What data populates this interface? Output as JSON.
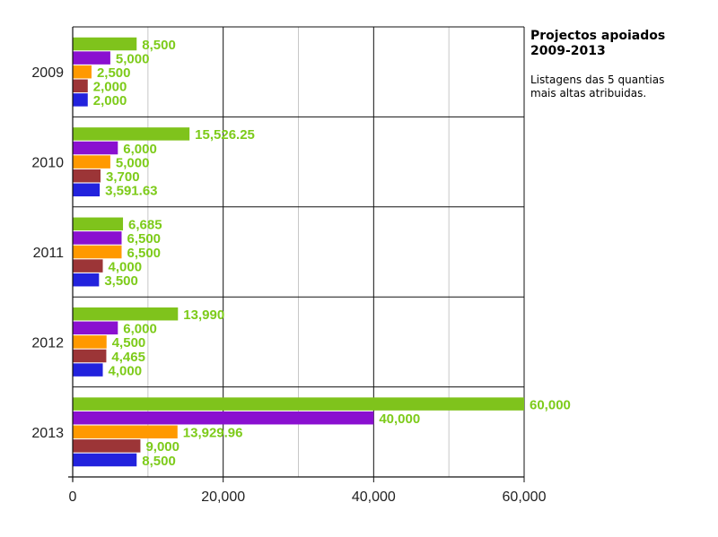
{
  "chart_data": {
    "type": "bar",
    "orientation": "horizontal",
    "title": "Projectos apoiados\n2009-2013",
    "subtitle": "Listagens das 5 quantias\nmais altas atribuidas.",
    "categories": [
      "2009",
      "2010",
      "2011",
      "2012",
      "2013"
    ],
    "series": [
      {
        "rank": 1,
        "color": "#7fc31c",
        "values": [
          8500,
          15526.25,
          6685,
          13990,
          60000
        ],
        "labels": [
          "8,500",
          "15,526.25",
          "6,685",
          "13,990",
          "60,000"
        ]
      },
      {
        "rank": 2,
        "color": "#8a10d0",
        "values": [
          5000,
          6000,
          6500,
          6000,
          40000
        ],
        "labels": [
          "5,000",
          "6,000",
          "6,500",
          "6,000",
          "40,000"
        ]
      },
      {
        "rank": 3,
        "color": "#ff9900",
        "values": [
          2500,
          5000,
          6500,
          4500,
          13929.96
        ],
        "labels": [
          "2,500",
          "5,000",
          "6,500",
          "4,500",
          "13,929.96"
        ]
      },
      {
        "rank": 4,
        "color": "#9c3537",
        "values": [
          2000,
          3700,
          4000,
          4465,
          9000
        ],
        "labels": [
          "2,000",
          "3,700",
          "4,000",
          "4,465",
          "9,000"
        ]
      },
      {
        "rank": 5,
        "color": "#2222dd",
        "values": [
          2000,
          3591.63,
          3500,
          4000,
          8500
        ],
        "labels": [
          "2,000",
          "3,591.63",
          "3,500",
          "4,000",
          "8,500"
        ]
      }
    ],
    "xlim": [
      0,
      60000
    ],
    "xticks": [
      0,
      20000,
      40000,
      60000
    ],
    "xtick_labels": [
      "0",
      "20,000",
      "40,000",
      "60,000"
    ],
    "minor_gridlines": [
      10000,
      30000,
      50000
    ],
    "grid": true,
    "legend": "none"
  }
}
